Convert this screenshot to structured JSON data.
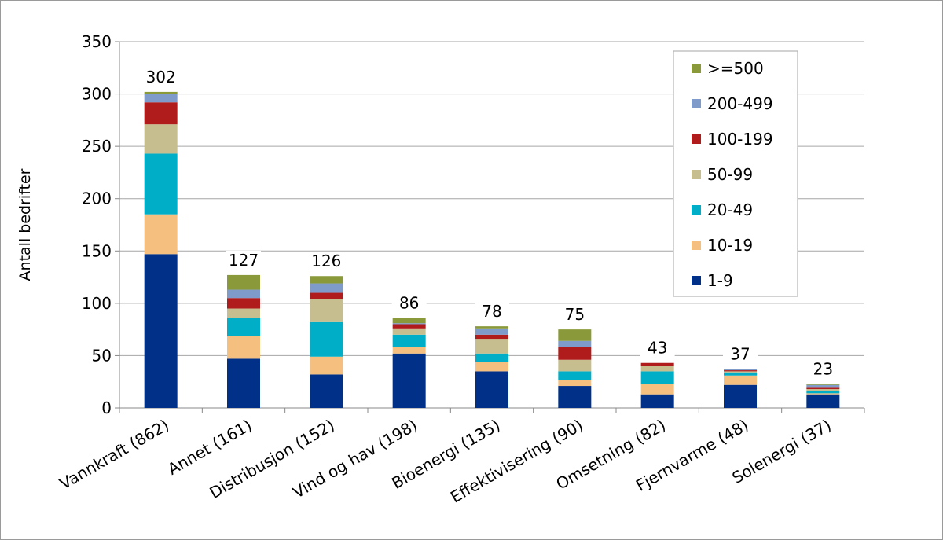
{
  "chart_data": {
    "type": "bar",
    "stacked": true,
    "title": "",
    "xlabel": "",
    "ylabel": "Antall bedrifter",
    "ylim": [
      0,
      350
    ],
    "yticks": [
      0,
      50,
      100,
      150,
      200,
      250,
      300,
      350
    ],
    "grid": true,
    "legend_position": "top-right",
    "categories": [
      "Vannkraft (862)",
      "Annet (161)",
      "Distribusjon (152)",
      "Vind og hav (198)",
      "Bioenergi (135)",
      "Effektivisering (90)",
      "Omsetning (82)",
      "Fjernvarme (48)",
      "Solenergi (37)"
    ],
    "totals": [
      302,
      127,
      126,
      86,
      78,
      75,
      43,
      37,
      23
    ],
    "series": [
      {
        "name": "1-9",
        "color": "#003087",
        "values": [
          147,
          47,
          32,
          52,
          35,
          21,
          13,
          22,
          13
        ]
      },
      {
        "name": "10-19",
        "color": "#f5c07f",
        "values": [
          38,
          22,
          17,
          6,
          9,
          6,
          10,
          9,
          1
        ]
      },
      {
        "name": "20-49",
        "color": "#00aec8",
        "values": [
          58,
          17,
          33,
          12,
          8,
          8,
          12,
          3,
          2
        ]
      },
      {
        "name": "50-99",
        "color": "#c6be8e",
        "values": [
          28,
          9,
          22,
          6,
          14,
          11,
          5,
          1,
          2
        ]
      },
      {
        "name": "100-199",
        "color": "#b01c1c",
        "values": [
          21,
          10,
          6,
          4,
          4,
          12,
          3,
          1,
          2
        ]
      },
      {
        "name": "200-499",
        "color": "#7f9bc9",
        "values": [
          8,
          8,
          9,
          1,
          6,
          6,
          0,
          1,
          2
        ]
      },
      {
        "name": ">=500",
        "color": "#8a9a3a",
        "values": [
          2,
          14,
          7,
          5,
          2,
          11,
          0,
          0,
          1
        ]
      }
    ]
  }
}
